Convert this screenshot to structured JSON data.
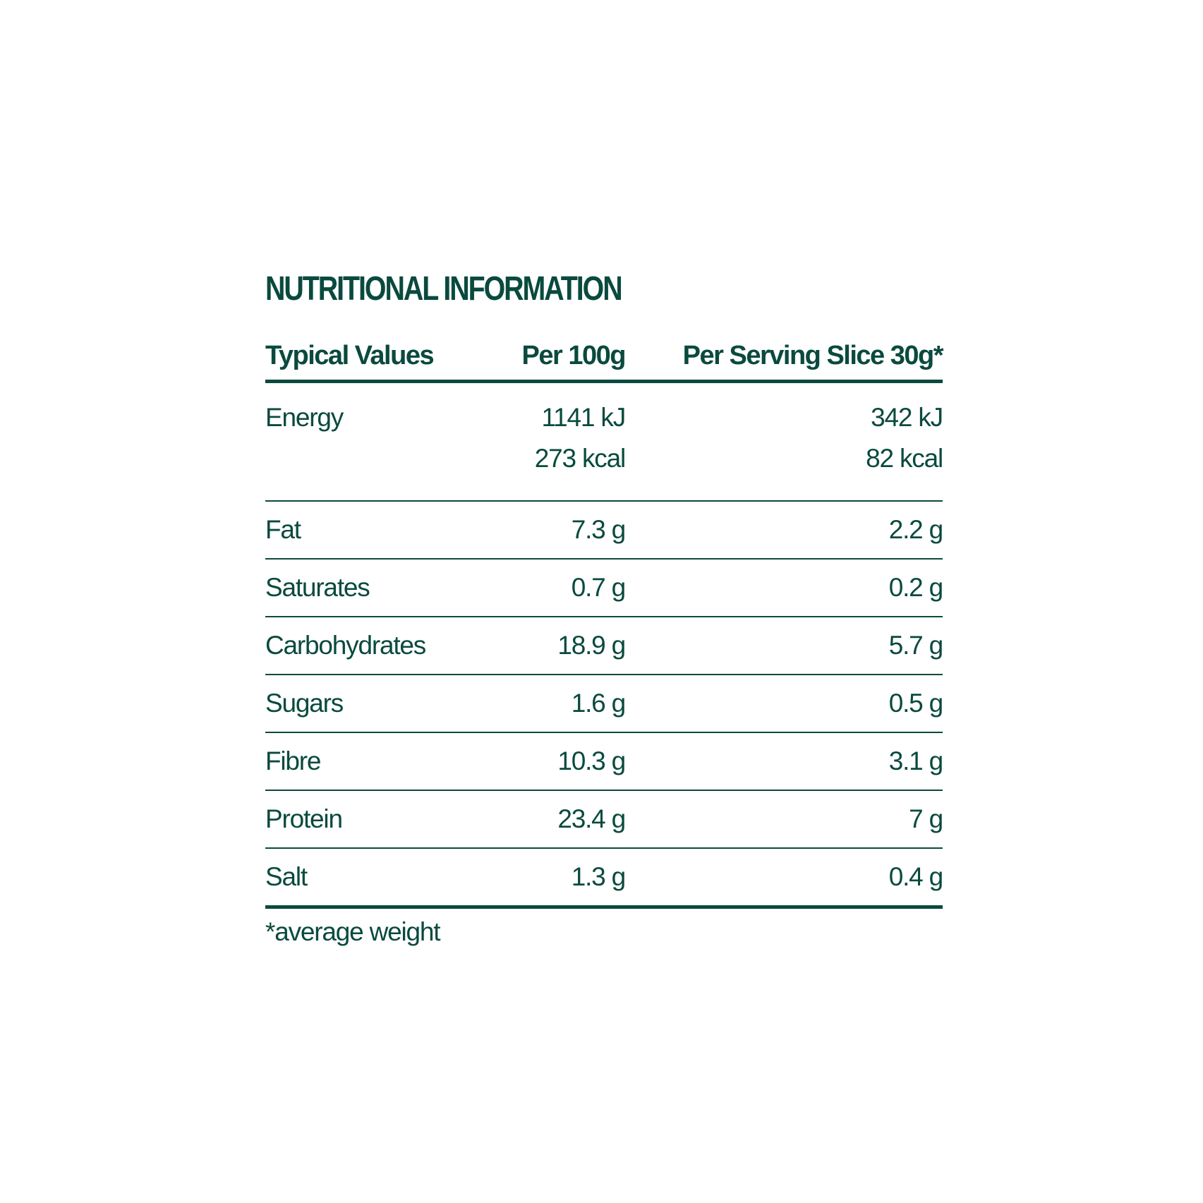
{
  "title": "NUTRITIONAL INFORMATION",
  "headers": [
    "Typical Values",
    "Per 100g",
    "Per Serving Slice 30g*"
  ],
  "energy": {
    "label": "Energy",
    "per100": [
      "1141 kJ",
      "273 kcal"
    ],
    "serving": [
      "342 kJ",
      "82 kcal"
    ]
  },
  "rows": [
    {
      "label": "Fat",
      "per100": "7.3 g",
      "serving": "2.2 g"
    },
    {
      "label": "Saturates",
      "per100": "0.7 g",
      "serving": "0.2 g"
    },
    {
      "label": "Carbohydrates",
      "per100": "18.9 g",
      "serving": "5.7 g"
    },
    {
      "label": "Sugars",
      "per100": "1.6 g",
      "serving": "0.5 g"
    },
    {
      "label": "Fibre",
      "per100": "10.3 g",
      "serving": "3.1 g"
    },
    {
      "label": "Protein",
      "per100": "23.4 g",
      "serving": "7 g"
    },
    {
      "label": "Salt",
      "per100": "1.3 g",
      "serving": "0.4 g"
    }
  ],
  "footnote": "*average weight",
  "colors": {
    "text": "#0a4a3e",
    "background": "#ffffff"
  }
}
